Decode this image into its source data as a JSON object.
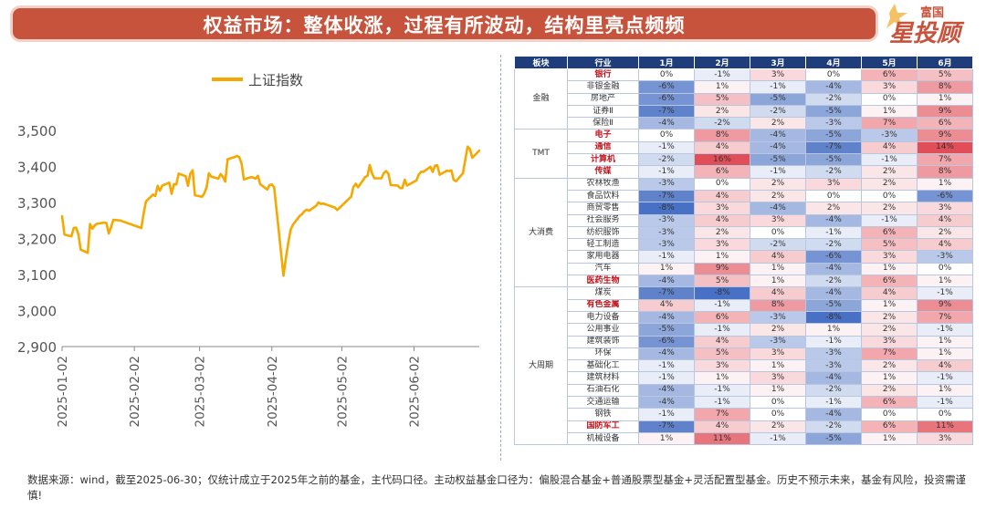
{
  "header": {
    "title": "权益市场：整体收涨，过程有所波动，结构里亮点频频",
    "logo_top": "富国",
    "logo_main": "星投顾"
  },
  "footer": {
    "note": "数据来源：wind，截至2025-06-30；仅统计成立于2025年之前的基金，主代码口径。主动权益基金口径为：偏股混合基金+普通股票型基金+灵活配置型基金。历史不预示未来，基金有风险，投资需谨慎!"
  },
  "colors": {
    "title_bg": "#c8533c",
    "line": "#f5a800",
    "header_bg": "#1f3d7a",
    "highlight_text": "#c0131b",
    "positive": "#e8535d",
    "negative": "#4a72c2"
  },
  "chart_data": [
    {
      "type": "line",
      "title": "",
      "xlabel": "",
      "ylabel": "",
      "legend": "top",
      "series_name": "上证指数",
      "ylim": [
        2900,
        3500
      ],
      "y_ticks": [
        2900,
        3000,
        3100,
        3200,
        3300,
        3400,
        3500
      ],
      "y_tick_labels": [
        "2,900",
        "3,000",
        "3,100",
        "3,200",
        "3,300",
        "3,400",
        "3,500"
      ],
      "x_tick_labels": [
        "2025-01-02",
        "2025-02-02",
        "2025-03-02",
        "2025-04-02",
        "2025-05-02",
        "2025-06-02"
      ],
      "x_range": [
        "2025-01-02",
        "2025-06-30"
      ],
      "x": [
        "2025-01-02",
        "2025-01-03",
        "2025-01-06",
        "2025-01-07",
        "2025-01-08",
        "2025-01-09",
        "2025-01-10",
        "2025-01-13",
        "2025-01-14",
        "2025-01-15",
        "2025-01-16",
        "2025-01-17",
        "2025-01-20",
        "2025-01-21",
        "2025-01-22",
        "2025-01-23",
        "2025-01-24",
        "2025-01-27",
        "2025-02-05",
        "2025-02-06",
        "2025-02-07",
        "2025-02-10",
        "2025-02-11",
        "2025-02-12",
        "2025-02-13",
        "2025-02-14",
        "2025-02-17",
        "2025-02-18",
        "2025-02-19",
        "2025-02-20",
        "2025-02-21",
        "2025-02-24",
        "2025-02-25",
        "2025-02-26",
        "2025-02-27",
        "2025-02-28",
        "2025-03-03",
        "2025-03-04",
        "2025-03-05",
        "2025-03-06",
        "2025-03-07",
        "2025-03-10",
        "2025-03-11",
        "2025-03-12",
        "2025-03-13",
        "2025-03-14",
        "2025-03-17",
        "2025-03-18",
        "2025-03-19",
        "2025-03-20",
        "2025-03-21",
        "2025-03-24",
        "2025-03-25",
        "2025-03-26",
        "2025-03-27",
        "2025-03-28",
        "2025-03-31",
        "2025-04-01",
        "2025-04-02",
        "2025-04-03",
        "2025-04-07",
        "2025-04-08",
        "2025-04-09",
        "2025-04-10",
        "2025-04-11",
        "2025-04-14",
        "2025-04-15",
        "2025-04-16",
        "2025-04-17",
        "2025-04-18",
        "2025-04-21",
        "2025-04-22",
        "2025-04-23",
        "2025-04-24",
        "2025-04-25",
        "2025-04-28",
        "2025-04-29",
        "2025-04-30",
        "2025-05-06",
        "2025-05-07",
        "2025-05-08",
        "2025-05-09",
        "2025-05-12",
        "2025-05-13",
        "2025-05-14",
        "2025-05-15",
        "2025-05-16",
        "2025-05-19",
        "2025-05-20",
        "2025-05-21",
        "2025-05-22",
        "2025-05-23",
        "2025-05-26",
        "2025-05-27",
        "2025-05-28",
        "2025-05-29",
        "2025-05-30",
        "2025-06-03",
        "2025-06-04",
        "2025-06-05",
        "2025-06-06",
        "2025-06-09",
        "2025-06-10",
        "2025-06-11",
        "2025-06-12",
        "2025-06-13",
        "2025-06-16",
        "2025-06-17",
        "2025-06-18",
        "2025-06-19",
        "2025-06-20",
        "2025-06-23",
        "2025-06-24",
        "2025-06-25",
        "2025-06-26",
        "2025-06-27",
        "2025-06-30"
      ],
      "y": [
        3262,
        3211,
        3206,
        3229,
        3230,
        3211,
        3169,
        3160,
        3240,
        3227,
        3236,
        3241,
        3244,
        3243,
        3214,
        3231,
        3252,
        3250,
        3229,
        3270,
        3303,
        3322,
        3318,
        3346,
        3333,
        3347,
        3355,
        3324,
        3351,
        3350,
        3380,
        3373,
        3346,
        3380,
        3389,
        3320,
        3316,
        3325,
        3342,
        3381,
        3372,
        3366,
        3379,
        3371,
        3358,
        3420,
        3426,
        3429,
        3426,
        3408,
        3364,
        3370,
        3369,
        3366,
        3374,
        3351,
        3336,
        3348,
        3350,
        3342,
        3097,
        3145,
        3186,
        3223,
        3238,
        3263,
        3268,
        3276,
        3280,
        3277,
        3291,
        3300,
        3296,
        3297,
        3295,
        3288,
        3286,
        3279,
        3316,
        3343,
        3352,
        3342,
        3370,
        3374,
        3404,
        3380,
        3367,
        3367,
        3381,
        3387,
        3380,
        3348,
        3347,
        3340,
        3340,
        3363,
        3347,
        3361,
        3377,
        3385,
        3385,
        3399,
        3385,
        3402,
        3403,
        3377,
        3388,
        3387,
        3389,
        3363,
        3359,
        3381,
        3420,
        3455,
        3448,
        3424,
        3444
      ]
    },
    {
      "type": "heatmap",
      "columns": {
        "sector": "板块",
        "industry": "行业",
        "months": [
          "1月",
          "2月",
          "3月",
          "4月",
          "5月",
          "6月"
        ]
      },
      "value_unit": "%",
      "sectors": [
        {
          "name": "金融",
          "rows": [
            {
              "industry": "银行",
              "hl": true,
              "values": [
                0,
                -1,
                3,
                0,
                6,
                5
              ]
            },
            {
              "industry": "非银金融",
              "hl": false,
              "values": [
                -6,
                1,
                -1,
                -4,
                3,
                8
              ]
            },
            {
              "industry": "房地产",
              "hl": false,
              "values": [
                -6,
                5,
                -5,
                -2,
                0,
                1
              ]
            },
            {
              "industry": "证券Ⅱ",
              "hl": false,
              "values": [
                -7,
                2,
                -2,
                -5,
                1,
                9
              ]
            },
            {
              "industry": "保险Ⅱ",
              "hl": false,
              "values": [
                -4,
                -2,
                2,
                -3,
                7,
                6
              ]
            }
          ]
        },
        {
          "name": "TMT",
          "rows": [
            {
              "industry": "电子",
              "hl": true,
              "values": [
                0,
                8,
                -4,
                -5,
                -3,
                9
              ]
            },
            {
              "industry": "通信",
              "hl": true,
              "values": [
                -1,
                4,
                -4,
                -7,
                4,
                14
              ]
            },
            {
              "industry": "计算机",
              "hl": true,
              "values": [
                -2,
                16,
                -5,
                -5,
                -1,
                7
              ]
            },
            {
              "industry": "传媒",
              "hl": true,
              "values": [
                -1,
                6,
                -1,
                -2,
                2,
                8
              ]
            }
          ]
        },
        {
          "name": "大消费",
          "rows": [
            {
              "industry": "农林牧渔",
              "hl": false,
              "values": [
                -3,
                0,
                2,
                3,
                2,
                1
              ]
            },
            {
              "industry": "食品饮料",
              "hl": false,
              "values": [
                -7,
                4,
                2,
                0,
                0,
                -6
              ]
            },
            {
              "industry": "商贸零售",
              "hl": false,
              "values": [
                -8,
                3,
                -4,
                2,
                2,
                3
              ]
            },
            {
              "industry": "社会服务",
              "hl": false,
              "values": [
                -3,
                4,
                3,
                -4,
                -1,
                4
              ]
            },
            {
              "industry": "纺织服饰",
              "hl": false,
              "values": [
                -3,
                2,
                0,
                -1,
                6,
                2
              ]
            },
            {
              "industry": "轻工制造",
              "hl": false,
              "values": [
                -3,
                3,
                -2,
                -2,
                5,
                4
              ]
            },
            {
              "industry": "家用电器",
              "hl": false,
              "values": [
                -1,
                1,
                4,
                -6,
                3,
                -3
              ]
            },
            {
              "industry": "汽车",
              "hl": false,
              "values": [
                1,
                9,
                1,
                -4,
                1,
                0
              ]
            },
            {
              "industry": "医药生物",
              "hl": true,
              "values": [
                -4,
                5,
                1,
                -2,
                6,
                1
              ]
            }
          ]
        },
        {
          "name": "大周期",
          "rows": [
            {
              "industry": "煤炭",
              "hl": false,
              "values": [
                -7,
                -8,
                4,
                -4,
                4,
                -1
              ]
            },
            {
              "industry": "有色金属",
              "hl": true,
              "values": [
                4,
                -1,
                8,
                -5,
                1,
                9
              ]
            },
            {
              "industry": "电力设备",
              "hl": false,
              "values": [
                -4,
                6,
                -3,
                -8,
                2,
                7
              ]
            },
            {
              "industry": "公用事业",
              "hl": false,
              "values": [
                -5,
                -1,
                2,
                1,
                2,
                -1
              ]
            },
            {
              "industry": "建筑装饰",
              "hl": false,
              "values": [
                -6,
                4,
                -3,
                -1,
                3,
                1
              ]
            },
            {
              "industry": "环保",
              "hl": false,
              "values": [
                -4,
                5,
                3,
                -3,
                7,
                1
              ]
            },
            {
              "industry": "基础化工",
              "hl": false,
              "values": [
                -1,
                3,
                1,
                -3,
                2,
                4
              ]
            },
            {
              "industry": "建筑材料",
              "hl": false,
              "values": [
                -1,
                1,
                3,
                -4,
                1,
                -1
              ]
            },
            {
              "industry": "石油石化",
              "hl": false,
              "values": [
                -4,
                -1,
                1,
                -2,
                2,
                1
              ]
            },
            {
              "industry": "交通运输",
              "hl": false,
              "values": [
                -4,
                -1,
                0,
                -1,
                6,
                -1
              ]
            },
            {
              "industry": "钢铁",
              "hl": false,
              "values": [
                -1,
                7,
                0,
                -4,
                0,
                0
              ]
            },
            {
              "industry": "国防军工",
              "hl": true,
              "values": [
                -7,
                4,
                2,
                -2,
                6,
                11
              ]
            },
            {
              "industry": "机械设备",
              "hl": false,
              "values": [
                1,
                11,
                -1,
                -5,
                1,
                3
              ]
            }
          ]
        }
      ]
    }
  ]
}
